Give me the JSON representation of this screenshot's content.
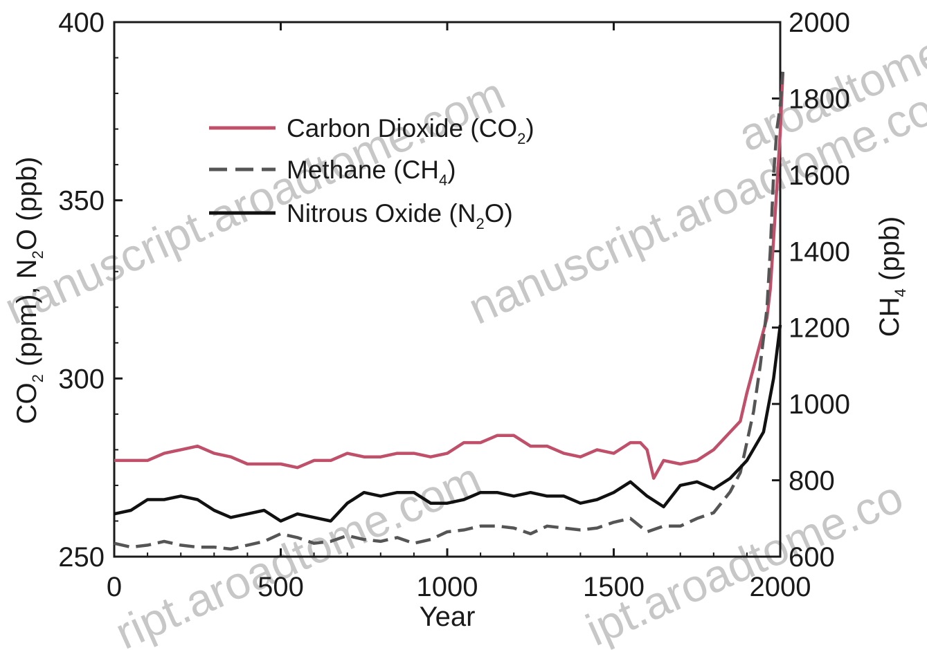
{
  "chart_data": {
    "type": "line",
    "xlabel": "Year",
    "ylabel_left": {
      "main": "CO",
      "sub1": "2",
      "mid": " (ppm), N",
      "sub2": "2",
      "end": "O (ppb)"
    },
    "ylabel_right": {
      "main": "CH",
      "sub": "4",
      "end": " (ppb)"
    },
    "xlim": [
      0,
      2000
    ],
    "ylim_left": [
      250,
      400
    ],
    "ylim_right": [
      600,
      2000
    ],
    "x_ticks": [
      0,
      500,
      1000,
      1500,
      2000
    ],
    "y_ticks_left": [
      250,
      300,
      350,
      400
    ],
    "y_ticks_right": [
      600,
      800,
      1000,
      1200,
      1400,
      1600,
      1800,
      2000
    ],
    "grid": false,
    "legend_position": "upper-left",
    "legend": [
      {
        "label_main": "Carbon Dioxide (CO",
        "label_sub": "2",
        "label_end": ")",
        "style": "solid",
        "color": "#c0506a"
      },
      {
        "label_main": "Methane (CH",
        "label_sub": "4",
        "label_end": ")",
        "style": "dashed",
        "color": "#555555"
      },
      {
        "label_main": "Nitrous Oxide (N",
        "label_sub": "2",
        "label_end": "O)",
        "style": "solid",
        "color": "#111111"
      }
    ],
    "series": [
      {
        "name": "Carbon Dioxide (CO2)",
        "axis": "left",
        "color": "#c0506a",
        "dash": "",
        "points": [
          [
            0,
            277
          ],
          [
            50,
            277
          ],
          [
            100,
            277
          ],
          [
            150,
            279
          ],
          [
            200,
            280
          ],
          [
            250,
            281
          ],
          [
            300,
            279
          ],
          [
            350,
            278
          ],
          [
            400,
            276
          ],
          [
            450,
            276
          ],
          [
            500,
            276
          ],
          [
            550,
            275
          ],
          [
            600,
            277
          ],
          [
            650,
            277
          ],
          [
            700,
            279
          ],
          [
            750,
            278
          ],
          [
            800,
            278
          ],
          [
            850,
            279
          ],
          [
            900,
            279
          ],
          [
            950,
            278
          ],
          [
            1000,
            279
          ],
          [
            1050,
            282
          ],
          [
            1100,
            282
          ],
          [
            1150,
            284
          ],
          [
            1200,
            284
          ],
          [
            1250,
            281
          ],
          [
            1300,
            281
          ],
          [
            1350,
            279
          ],
          [
            1400,
            278
          ],
          [
            1450,
            280
          ],
          [
            1500,
            279
          ],
          [
            1550,
            282
          ],
          [
            1580,
            282
          ],
          [
            1600,
            280
          ],
          [
            1620,
            272
          ],
          [
            1650,
            277
          ],
          [
            1700,
            276
          ],
          [
            1750,
            277
          ],
          [
            1800,
            280
          ],
          [
            1850,
            285
          ],
          [
            1880,
            288
          ],
          [
            1900,
            296
          ],
          [
            1920,
            303
          ],
          [
            1940,
            310
          ],
          [
            1960,
            317
          ],
          [
            1970,
            325
          ],
          [
            1980,
            339
          ],
          [
            1990,
            354
          ],
          [
            2000,
            369
          ],
          [
            2008,
            386
          ]
        ]
      },
      {
        "name": "Methane (CH4)",
        "axis": "right",
        "color": "#555555",
        "dash": "22,10",
        "points": [
          [
            0,
            635
          ],
          [
            50,
            625
          ],
          [
            100,
            630
          ],
          [
            150,
            640
          ],
          [
            200,
            630
          ],
          [
            250,
            625
          ],
          [
            300,
            625
          ],
          [
            350,
            620
          ],
          [
            400,
            630
          ],
          [
            450,
            640
          ],
          [
            500,
            660
          ],
          [
            550,
            650
          ],
          [
            600,
            635
          ],
          [
            650,
            640
          ],
          [
            700,
            655
          ],
          [
            750,
            645
          ],
          [
            800,
            640
          ],
          [
            850,
            650
          ],
          [
            900,
            635
          ],
          [
            950,
            645
          ],
          [
            1000,
            665
          ],
          [
            1050,
            670
          ],
          [
            1100,
            680
          ],
          [
            1150,
            680
          ],
          [
            1200,
            675
          ],
          [
            1250,
            660
          ],
          [
            1300,
            680
          ],
          [
            1350,
            675
          ],
          [
            1400,
            670
          ],
          [
            1450,
            675
          ],
          [
            1500,
            690
          ],
          [
            1550,
            700
          ],
          [
            1600,
            665
          ],
          [
            1650,
            680
          ],
          [
            1700,
            680
          ],
          [
            1750,
            700
          ],
          [
            1800,
            715
          ],
          [
            1850,
            770
          ],
          [
            1880,
            820
          ],
          [
            1900,
            900
          ],
          [
            1920,
            980
          ],
          [
            1940,
            1100
          ],
          [
            1960,
            1250
          ],
          [
            1970,
            1400
          ],
          [
            1980,
            1600
          ],
          [
            1990,
            1720
          ],
          [
            2000,
            1780
          ],
          [
            2008,
            1870
          ]
        ]
      },
      {
        "name": "Nitrous Oxide (N2O)",
        "axis": "left",
        "color": "#111111",
        "dash": "",
        "points": [
          [
            0,
            262
          ],
          [
            50,
            263
          ],
          [
            100,
            266
          ],
          [
            150,
            266
          ],
          [
            200,
            267
          ],
          [
            250,
            266
          ],
          [
            300,
            263
          ],
          [
            350,
            261
          ],
          [
            400,
            262
          ],
          [
            450,
            263
          ],
          [
            500,
            260
          ],
          [
            550,
            262
          ],
          [
            600,
            261
          ],
          [
            650,
            260
          ],
          [
            700,
            265
          ],
          [
            750,
            268
          ],
          [
            800,
            267
          ],
          [
            850,
            268
          ],
          [
            900,
            268
          ],
          [
            950,
            265
          ],
          [
            1000,
            265
          ],
          [
            1050,
            266
          ],
          [
            1100,
            268
          ],
          [
            1150,
            268
          ],
          [
            1200,
            267
          ],
          [
            1250,
            268
          ],
          [
            1300,
            267
          ],
          [
            1350,
            267
          ],
          [
            1400,
            265
          ],
          [
            1450,
            266
          ],
          [
            1500,
            268
          ],
          [
            1550,
            271
          ],
          [
            1600,
            267
          ],
          [
            1650,
            264
          ],
          [
            1700,
            270
          ],
          [
            1750,
            271
          ],
          [
            1800,
            269
          ],
          [
            1850,
            272
          ],
          [
            1900,
            277
          ],
          [
            1950,
            285
          ],
          [
            1980,
            300
          ],
          [
            2000,
            315
          ]
        ]
      }
    ]
  },
  "watermarks": [
    "nanuscript.aroadtome.com",
    "nanuscript.aroadtome.com",
    "ript.aroadtome.com",
    "ipt.aroadtome.co",
    "aroadtome.co"
  ]
}
